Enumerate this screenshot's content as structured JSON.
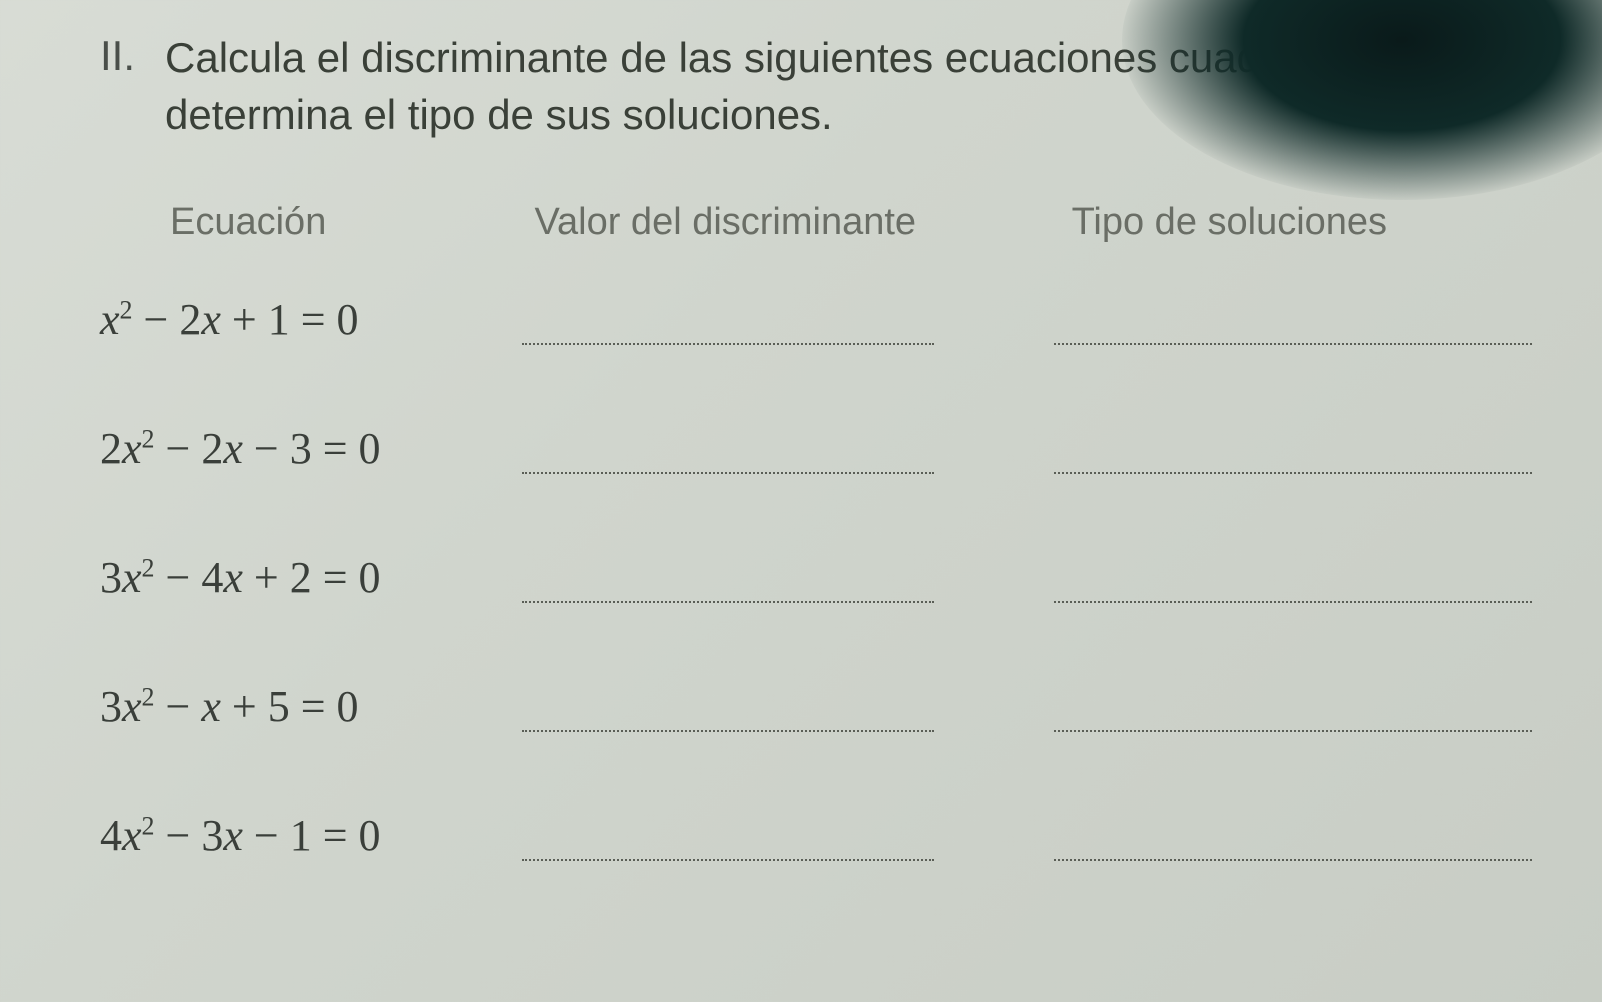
{
  "section_number": "II.",
  "instruction": "Calcula el discriminante de las siguientes ecuaciones cuadráticas y determina el tipo de sus soluciones.",
  "headers": {
    "equation": "Ecuación",
    "discriminant": "Valor del discriminante",
    "solution_type": "Tipo de soluciones"
  },
  "equations": [
    {
      "latex": "x^2 - 2x + 1 = 0",
      "a": 1,
      "b": -2,
      "c": 1
    },
    {
      "latex": "2x^2 - 2x - 3 = 0",
      "a": 2,
      "b": -2,
      "c": -3
    },
    {
      "latex": "3x^2 - 4x + 2 = 0",
      "a": 3,
      "b": -4,
      "c": 2
    },
    {
      "latex": "3x^2 - x + 5 = 0",
      "a": 3,
      "b": -1,
      "c": 5
    },
    {
      "latex": "4x^2 - 3x - 1 = 0",
      "a": 4,
      "b": -3,
      "c": -1
    }
  ],
  "colors": {
    "background": "#d4d8d0",
    "text": "#3a3f3a",
    "muted": "#6a6e66",
    "dotline": "#5a5e56"
  },
  "typography": {
    "body_fontsize_pt": 32,
    "header_fontsize_pt": 28,
    "equation_font": "Times New Roman italic"
  }
}
